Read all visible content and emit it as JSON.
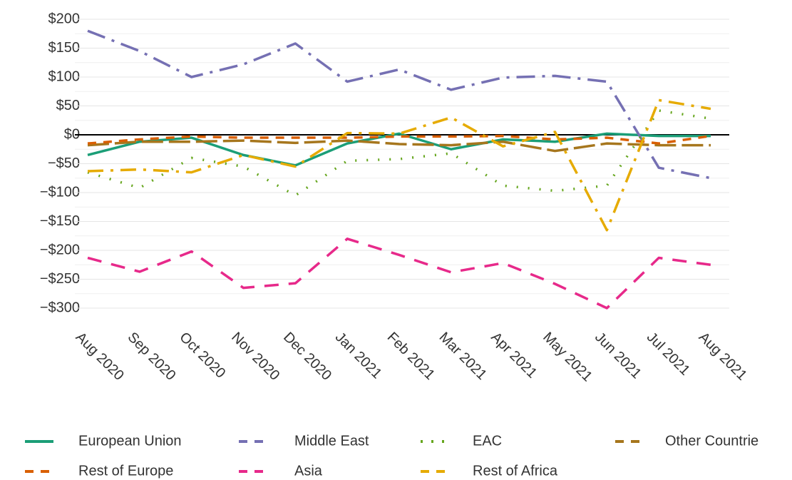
{
  "chart_data": {
    "type": "line",
    "categories": [
      "Aug 2020",
      "Sep 2020",
      "Oct 2020",
      "Nov 2020",
      "Dec 2020",
      "Jan 2021",
      "Feb 2021",
      "Mar 2021",
      "Apr 2021",
      "May 2021",
      "Jun 2021",
      "Jul 2021",
      "Aug 2021"
    ],
    "series": [
      {
        "name": "European Union",
        "color": "#1b9e77",
        "dash": "solid",
        "values": [
          -35,
          -12,
          -5,
          -35,
          -53,
          -15,
          2,
          -25,
          -8,
          -12,
          2,
          -2,
          -2
        ]
      },
      {
        "name": "Middle East",
        "color": "#7570b3",
        "dash": "longdash",
        "values": [
          180,
          145,
          100,
          122,
          158,
          92,
          113,
          78,
          99,
          102,
          92,
          -57,
          -75
        ]
      },
      {
        "name": "EAC",
        "color": "#66a61e",
        "dash": "dotted",
        "values": [
          -65,
          -92,
          -40,
          -55,
          -105,
          -45,
          -42,
          -32,
          -88,
          -97,
          -88,
          42,
          28
        ]
      },
      {
        "name": "Other Countrie",
        "color": "#a6761d",
        "dash": "longdash2",
        "values": [
          -18,
          -12,
          -12,
          -10,
          -14,
          -10,
          -16,
          -18,
          -12,
          -28,
          -15,
          -18,
          -18
        ]
      },
      {
        "name": "Rest of Europe",
        "color": "#d95f02",
        "dash": "dashed",
        "values": [
          -15,
          -8,
          -3,
          -5,
          -5,
          -5,
          -3,
          -3,
          -2,
          -8,
          -5,
          -15,
          -2
        ]
      },
      {
        "name": "Asia",
        "color": "#e7298a",
        "dash": "dashed2",
        "values": [
          -213,
          -237,
          -202,
          -265,
          -257,
          -180,
          -208,
          -238,
          -222,
          -258,
          -300,
          -213,
          -225
        ]
      },
      {
        "name": "Rest of Africa",
        "color": "#e6ab02",
        "dash": "dotdash",
        "values": [
          -63,
          -60,
          -65,
          -35,
          -55,
          3,
          2,
          30,
          -20,
          5,
          -165,
          60,
          45
        ]
      }
    ],
    "ylim": [
      -310,
      210
    ],
    "yticks": [
      {
        "value": 200,
        "label": "$200"
      },
      {
        "value": 150,
        "label": "$150"
      },
      {
        "value": 100,
        "label": "$100"
      },
      {
        "value": 50,
        "label": "$50"
      },
      {
        "value": 0,
        "label": "$0"
      },
      {
        "value": -50,
        "label": "−$50"
      },
      {
        "value": -100,
        "label": "−$100"
      },
      {
        "value": -150,
        "label": "−$150"
      },
      {
        "value": -200,
        "label": "−$200"
      },
      {
        "value": -250,
        "label": "−$250"
      },
      {
        "value": -300,
        "label": "−$300"
      }
    ],
    "grid": true,
    "legend": "bottom"
  }
}
